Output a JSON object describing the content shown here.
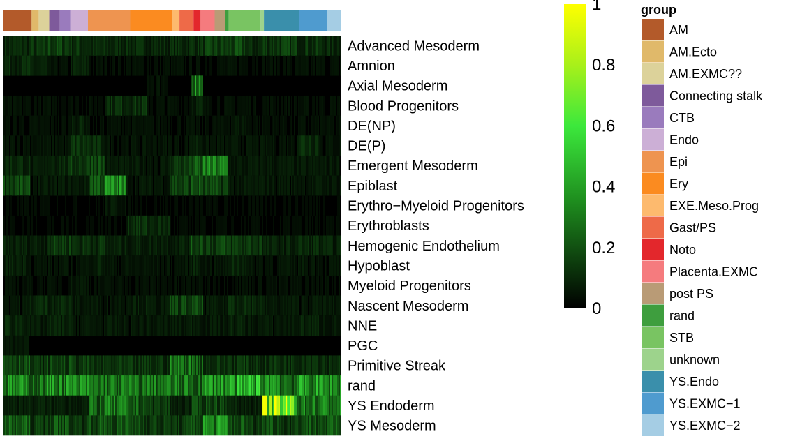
{
  "chart_data": {
    "type": "heatmap",
    "title": "",
    "rows": [
      {
        "label": "Advanced Mesoderm",
        "base": 0.1,
        "hot": [
          [
            1,
            0.12
          ],
          [
            2,
            0.16
          ],
          [
            3,
            0.12
          ],
          [
            9,
            0.12
          ],
          [
            10,
            0.14
          ],
          [
            11,
            0.16
          ],
          [
            14,
            0.14
          ],
          [
            15,
            0.12
          ]
        ]
      },
      {
        "label": "Amnion",
        "base": 0.04,
        "hot": [
          [
            0,
            0.1
          ],
          [
            1,
            0.08
          ],
          [
            3,
            0.08
          ]
        ]
      },
      {
        "label": "Axial Mesoderm",
        "base": 0.02,
        "hot": [
          [
            7,
            0.05
          ],
          [
            9,
            0.35
          ]
        ]
      },
      {
        "label": "Blood Progenitors",
        "base": 0.04,
        "hot": [
          [
            5,
            0.12
          ],
          [
            6,
            0.12
          ],
          [
            9,
            0.08
          ]
        ]
      },
      {
        "label": "DE(NP)",
        "base": 0.04,
        "hot": [
          [
            3,
            0.08
          ],
          [
            11,
            0.06
          ]
        ]
      },
      {
        "label": "DE(P)",
        "base": 0.05,
        "hot": [
          [
            3,
            0.12
          ],
          [
            4,
            0.1
          ],
          [
            9,
            0.08
          ],
          [
            15,
            0.12
          ]
        ]
      },
      {
        "label": "Emergent Mesoderm",
        "base": 0.06,
        "hot": [
          [
            0,
            0.1
          ],
          [
            2,
            0.1
          ],
          [
            3,
            0.14
          ],
          [
            4,
            0.18
          ],
          [
            8,
            0.14
          ],
          [
            9,
            0.2
          ],
          [
            10,
            0.3
          ]
        ]
      },
      {
        "label": "Epiblast",
        "base": 0.06,
        "hot": [
          [
            0,
            0.16
          ],
          [
            4,
            0.22
          ],
          [
            5,
            0.32
          ],
          [
            8,
            0.16
          ],
          [
            9,
            0.2
          ],
          [
            10,
            0.16
          ]
        ]
      },
      {
        "label": "Erythro-Myeloid Progenitors",
        "base": 0.03,
        "hot": [
          [
            5,
            0.06
          ]
        ]
      },
      {
        "label": "Erythroblasts",
        "base": 0.03,
        "hot": [
          [
            6,
            0.12
          ],
          [
            7,
            0.1
          ]
        ]
      },
      {
        "label": "Hemogenic Endothelium",
        "base": 0.08,
        "hot": [
          [
            2,
            0.14
          ],
          [
            3,
            0.12
          ],
          [
            4,
            0.12
          ],
          [
            9,
            0.18
          ],
          [
            10,
            0.16
          ],
          [
            11,
            0.14
          ],
          [
            12,
            0.14
          ],
          [
            15,
            0.1
          ]
        ]
      },
      {
        "label": "Hypoblast",
        "base": 0.05,
        "hot": [
          [
            0,
            0.08
          ],
          [
            4,
            0.08
          ],
          [
            9,
            0.08
          ],
          [
            11,
            0.1
          ],
          [
            15,
            0.06
          ]
        ]
      },
      {
        "label": "Myeloid Progenitors",
        "base": 0.04,
        "hot": [
          [
            3,
            0.06
          ]
        ]
      },
      {
        "label": "Nascent Mesoderm",
        "base": 0.06,
        "hot": [
          [
            1,
            0.1
          ],
          [
            2,
            0.1
          ],
          [
            6,
            0.08
          ],
          [
            8,
            0.16
          ],
          [
            9,
            0.16
          ],
          [
            11,
            0.12
          ],
          [
            12,
            0.1
          ]
        ]
      },
      {
        "label": "NNE",
        "base": 0.06,
        "hot": [
          [
            0,
            0.1
          ],
          [
            2,
            0.08
          ],
          [
            9,
            0.08
          ],
          [
            11,
            0.08
          ],
          [
            15,
            0.08
          ]
        ]
      },
      {
        "label": "PGC",
        "base": 0.02,
        "hot": [
          [
            0,
            0.05
          ]
        ]
      },
      {
        "label": "Primitive Streak",
        "base": 0.12,
        "hot": [
          [
            0,
            0.2
          ],
          [
            2,
            0.16
          ],
          [
            3,
            0.14
          ],
          [
            5,
            0.08
          ],
          [
            6,
            0.08
          ],
          [
            8,
            0.28
          ],
          [
            9,
            0.24
          ],
          [
            11,
            0.14
          ],
          [
            12,
            0.12
          ],
          [
            15,
            0.14
          ],
          [
            16,
            0.12
          ]
        ]
      },
      {
        "label": "rand",
        "base": 0.28,
        "hot": [
          [
            0,
            0.32
          ],
          [
            2,
            0.34
          ],
          [
            3,
            0.32
          ],
          [
            10,
            0.36
          ],
          [
            11,
            0.4
          ],
          [
            12,
            0.45
          ],
          [
            13,
            0.4
          ],
          [
            14,
            0.26
          ],
          [
            15,
            0.36
          ],
          [
            16,
            0.34
          ]
        ]
      },
      {
        "label": "YS Endoderm",
        "base": 0.08,
        "hot": [
          [
            4,
            0.24
          ],
          [
            5,
            0.28
          ],
          [
            6,
            0.22
          ],
          [
            7,
            0.14
          ],
          [
            9,
            0.16
          ],
          [
            10,
            0.18
          ],
          [
            14,
            0.7
          ],
          [
            15,
            0.3
          ],
          [
            16,
            0.3
          ]
        ]
      },
      {
        "label": "YS Mesoderm",
        "base": 0.14,
        "hot": [
          [
            0,
            0.22
          ],
          [
            2,
            0.2
          ],
          [
            4,
            0.2
          ],
          [
            5,
            0.2
          ],
          [
            6,
            0.2
          ],
          [
            9,
            0.2
          ],
          [
            10,
            0.34
          ],
          [
            11,
            0.2
          ],
          [
            13,
            0.2
          ],
          [
            14,
            0.1
          ],
          [
            15,
            0.2
          ],
          [
            16,
            0.2
          ]
        ]
      }
    ],
    "column_annotation": {
      "title": "group",
      "groups": [
        {
          "name": "AM",
          "color": "#b35a2a",
          "weight": 8
        },
        {
          "name": "AM.Ecto",
          "color": "#e0b96a",
          "weight": 2
        },
        {
          "name": "AM.EXMC??",
          "color": "#dcd29a",
          "weight": 3
        },
        {
          "name": "Connecting stalk",
          "color": "#7e5a9b",
          "weight": 3
        },
        {
          "name": "CTB",
          "color": "#9a7bbd",
          "weight": 3
        },
        {
          "name": "Endo",
          "color": "#ccafd6",
          "weight": 5
        },
        {
          "name": "Epi",
          "color": "#ee9450",
          "weight": 12
        },
        {
          "name": "Ery",
          "color": "#fb8b20",
          "weight": 12
        },
        {
          "name": "EXE.Meso.Prog",
          "color": "#fdba6e",
          "weight": 2
        },
        {
          "name": "Gast/PS",
          "color": "#ee6a48",
          "weight": 4
        },
        {
          "name": "Noto",
          "color": "#e3272c",
          "weight": 2
        },
        {
          "name": "Placenta.EXMC",
          "color": "#f57b7e",
          "weight": 4
        },
        {
          "name": "post PS",
          "color": "#b99b76",
          "weight": 3
        },
        {
          "name": "rand",
          "color": "#3e9e3e",
          "weight": 1
        },
        {
          "name": "STB",
          "color": "#79c462",
          "weight": 9
        },
        {
          "name": "unknown",
          "color": "#9dd38c",
          "weight": 1
        },
        {
          "name": "YS.Endo",
          "color": "#3a8fab",
          "weight": 10
        },
        {
          "name": "YS.EXMC-1",
          "color": "#4f9bcf",
          "weight": 8
        },
        {
          "name": "YS.EXMC-2",
          "color": "#a5cde4",
          "weight": 4
        }
      ]
    },
    "color_scale": {
      "range": [
        0,
        1
      ],
      "ticks": [
        {
          "value": 0,
          "label": "0"
        },
        {
          "value": 0.2,
          "label": "0.2"
        },
        {
          "value": 0.4,
          "label": "0.4"
        },
        {
          "value": 0.6,
          "label": "0.6"
        },
        {
          "value": 0.8,
          "label": "0.8"
        },
        {
          "value": 1,
          "label": "1"
        }
      ],
      "stops": [
        {
          "value": 0,
          "color": "#000000"
        },
        {
          "value": 0.35,
          "color": "#1e8c1e"
        },
        {
          "value": 0.6,
          "color": "#3ce83c"
        },
        {
          "value": 0.8,
          "color": "#a8f01a"
        },
        {
          "value": 1,
          "color": "#ffff00"
        }
      ]
    },
    "legend_position": "right",
    "grid": false
  }
}
